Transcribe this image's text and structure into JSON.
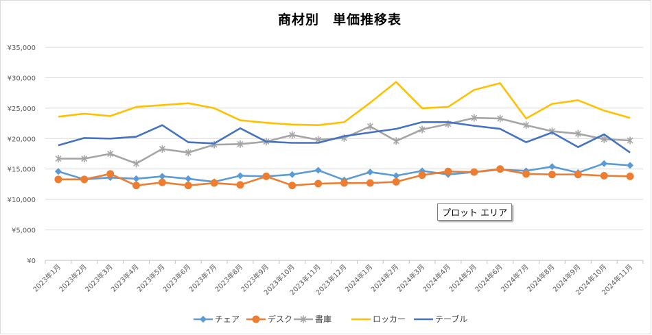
{
  "chart_data": {
    "type": "line",
    "title": "商材別　単価推移表",
    "xlabel": "",
    "ylabel": "",
    "ylim": [
      0,
      35000
    ],
    "yticks": [
      "¥0",
      "¥5,000",
      "¥10,000",
      "¥15,000",
      "¥20,000",
      "¥25,000",
      "¥30,000",
      "¥35,000"
    ],
    "grid": true,
    "legend": "bottom",
    "categories": [
      "2023年1月",
      "2023年2月",
      "2023年3月",
      "2023年4月",
      "2023年5月",
      "2023年6月",
      "2023年7月",
      "2023年8月",
      "2023年9月",
      "2023年10月",
      "2023年11月",
      "2023年12月",
      "2024年1月",
      "2024年2月",
      "2024年3月",
      "2024年4月",
      "2024年5月",
      "2024年6月",
      "2024年7月",
      "2024年8月",
      "2024年9月",
      "2024年10月",
      "2024年11月"
    ],
    "series": [
      {
        "name": "チェア",
        "color": "#5b9bd5",
        "marker": "diamond",
        "values": [
          14600,
          13300,
          13600,
          13400,
          13800,
          13400,
          12900,
          13900,
          13800,
          14100,
          14800,
          13200,
          14500,
          13900,
          14700,
          14100,
          14500,
          14900,
          14700,
          15400,
          14400,
          15900,
          15600
        ]
      },
      {
        "name": "デスク",
        "color": "#ed7d31",
        "marker": "circle",
        "values": [
          13300,
          13300,
          14200,
          12300,
          12800,
          12300,
          12700,
          12400,
          13800,
          12300,
          12600,
          12700,
          12700,
          12900,
          14000,
          14600,
          14500,
          15000,
          14200,
          14100,
          14100,
          13900,
          13800
        ]
      },
      {
        "name": "書庫",
        "color": "#a5a5a5",
        "marker": "star",
        "values": [
          16700,
          16700,
          17500,
          15900,
          18300,
          17700,
          19000,
          19100,
          19500,
          20600,
          19800,
          20100,
          22000,
          19600,
          21500,
          22400,
          23400,
          23300,
          22200,
          21200,
          20800,
          19900,
          19700
        ]
      },
      {
        "name": "ロッカー",
        "color": "#ffc000",
        "marker": "none",
        "values": [
          23600,
          24100,
          23700,
          25200,
          25500,
          25800,
          25000,
          23000,
          22600,
          22300,
          22200,
          22700,
          25900,
          29300,
          25000,
          25200,
          28000,
          29100,
          23300,
          25700,
          26300,
          24600,
          23400
        ]
      },
      {
        "name": "テーブル",
        "color": "#4472c4",
        "marker": "none",
        "values": [
          18900,
          20100,
          20000,
          20300,
          22200,
          19400,
          19200,
          21700,
          19500,
          19300,
          19300,
          20400,
          21000,
          21600,
          22700,
          22700,
          22100,
          21600,
          19400,
          21000,
          18600,
          20700,
          17700
        ]
      }
    ]
  },
  "tooltip": {
    "label": "プロット エリア"
  }
}
